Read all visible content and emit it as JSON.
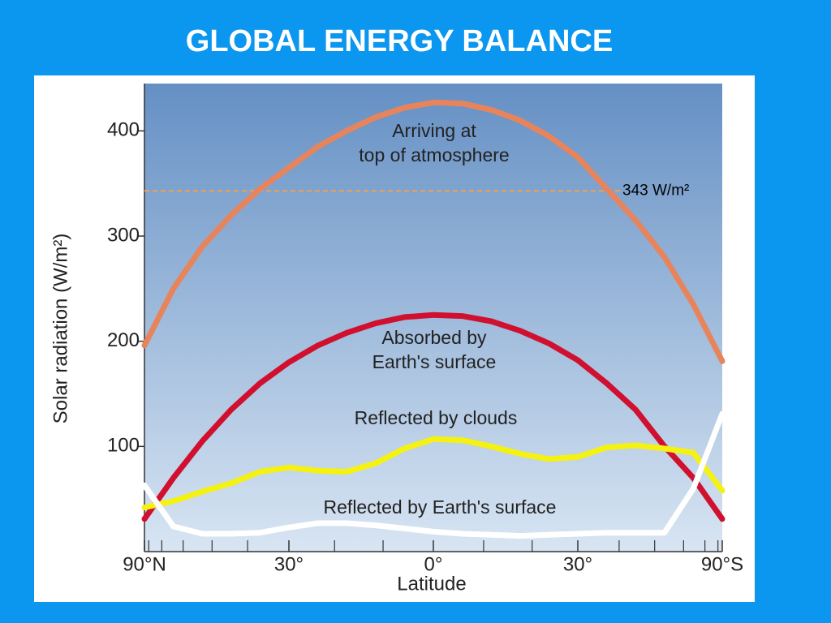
{
  "chart_data": {
    "type": "line",
    "title": "GLOBAL ENERGY BALANCE",
    "ylabel": "Solar radiation (W/m²)",
    "xlabel": "Latitude",
    "xlim": [
      -1,
      1
    ],
    "xticks": [
      {
        "value": -1,
        "label": "90°N"
      },
      {
        "value": -0.5,
        "label": "30°"
      },
      {
        "value": 0,
        "label": "0°"
      },
      {
        "value": 0.5,
        "label": "30°"
      },
      {
        "value": 1,
        "label": "90°S"
      }
    ],
    "xminor_ticks": [
      -0.985,
      -0.94,
      -0.866,
      -0.766,
      -0.643,
      -0.342,
      -0.174,
      0.174,
      0.342,
      0.643,
      0.766,
      0.866,
      0.94,
      0.985
    ],
    "ylim": [
      0,
      445
    ],
    "yticks": [
      100,
      200,
      300,
      400
    ],
    "reference_line": {
      "value": 343,
      "label": "343 W/m²",
      "color": "#f0a050"
    },
    "x": [
      -1,
      -0.9,
      -0.8,
      -0.7,
      -0.6,
      -0.5,
      -0.4,
      -0.3,
      -0.2,
      -0.1,
      0,
      0.1,
      0.2,
      0.3,
      0.4,
      0.5,
      0.6,
      0.7,
      0.8,
      0.9,
      1
    ],
    "series": [
      {
        "label": [
          "Arriving at",
          "top of atmosphere"
        ],
        "color": "#e8845c",
        "values": [
          196,
          250,
          290,
          320,
          345,
          365,
          385,
          400,
          413,
          422,
          427,
          426,
          420,
          410,
          395,
          375,
          345,
          315,
          280,
          235,
          181
        ]
      },
      {
        "label": [
          "Absorbed by",
          "Earth's surface"
        ],
        "color": "#d0102e",
        "values": [
          31,
          70,
          105,
          135,
          160,
          180,
          196,
          208,
          217,
          223,
          225,
          224,
          219,
          210,
          198,
          182,
          160,
          135,
          100,
          70,
          31
        ]
      },
      {
        "label": [
          "Reflected by clouds"
        ],
        "color": "#f5f212",
        "values": [
          42,
          48,
          57,
          65,
          76,
          80,
          77,
          76,
          84,
          98,
          107,
          106,
          100,
          93,
          88,
          90,
          99,
          101,
          98,
          94,
          58
        ]
      },
      {
        "label": [
          "Reflected by Earth's surface"
        ],
        "color": "#ffffff",
        "values": [
          63,
          24,
          17,
          17,
          18,
          23,
          27,
          27,
          25,
          22,
          19,
          17,
          16,
          15,
          16,
          17,
          18,
          18,
          18,
          60,
          131
        ]
      }
    ]
  }
}
